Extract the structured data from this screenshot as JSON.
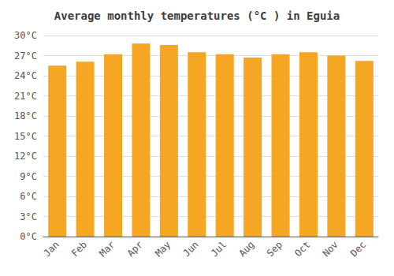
{
  "chart_data": {
    "type": "bar",
    "title": "Average monthly temperatures (°C ) in Eguia",
    "categories": [
      "Jan",
      "Feb",
      "Mar",
      "Apr",
      "May",
      "Jun",
      "Jul",
      "Aug",
      "Sep",
      "Oct",
      "Nov",
      "Dec"
    ],
    "values": [
      25.5,
      26.1,
      27.2,
      28.8,
      28.6,
      27.5,
      27.2,
      26.7,
      27.2,
      27.5,
      27.0,
      26.2
    ],
    "color": "#F5A623",
    "ylim": [
      0,
      30
    ],
    "yticks": [
      {
        "value": 0,
        "label": "0°C"
      },
      {
        "value": 3,
        "label": "3°C"
      },
      {
        "value": 6,
        "label": "6°C"
      },
      {
        "value": 9,
        "label": "9°C"
      },
      {
        "value": 12,
        "label": "12°C"
      },
      {
        "value": 15,
        "label": "15°C"
      },
      {
        "value": 18,
        "label": "18°C"
      },
      {
        "value": 21,
        "label": "21°C"
      },
      {
        "value": 24,
        "label": "24°C"
      },
      {
        "value": 27,
        "label": "27°C"
      },
      {
        "value": 30,
        "label": "30°C"
      }
    ],
    "grid": true
  }
}
